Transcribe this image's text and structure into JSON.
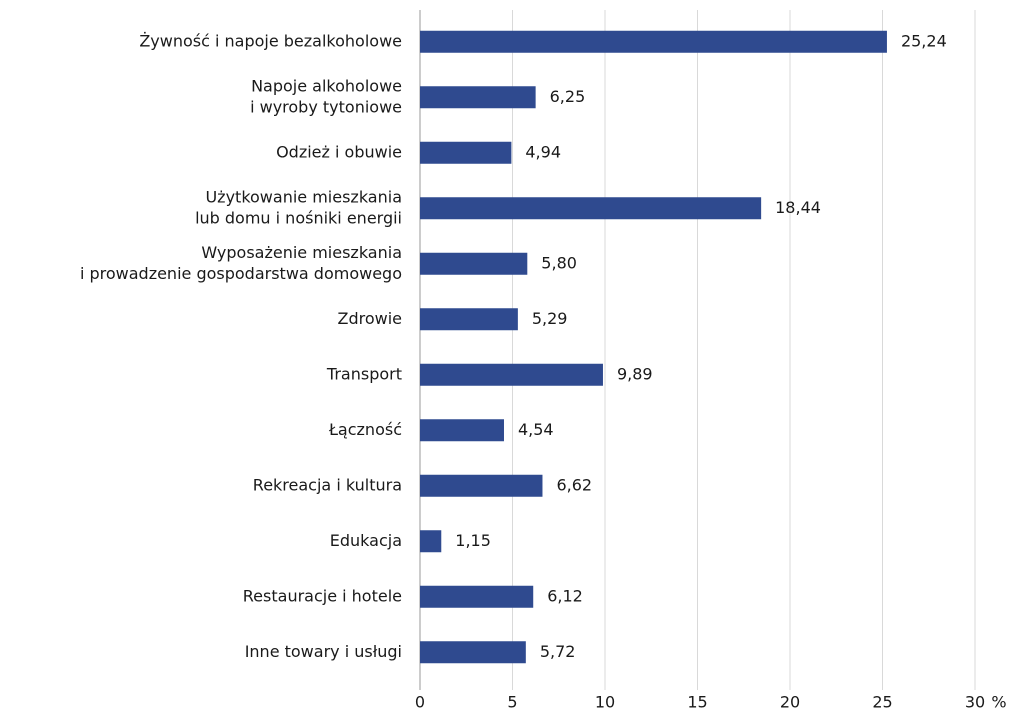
{
  "chart_data": {
    "type": "bar",
    "orientation": "horizontal",
    "categories": [
      "Żywność i napoje bezalkoholowe",
      [
        "Napoje alkoholowe",
        "i wyroby tytoniowe"
      ],
      "Odzież i obuwie",
      [
        "Użytkowanie mieszkania",
        "lub domu i nośniki energii"
      ],
      [
        "Wyposażenie mieszkania",
        "i prowadzenie gospodarstwa domowego"
      ],
      "Zdrowie",
      "Transport",
      "Łączność",
      "Rekreacja i kultura",
      "Edukacja",
      "Restauracje i hotele",
      "Inne towary i usługi"
    ],
    "values": [
      25.24,
      6.25,
      4.94,
      18.44,
      5.8,
      5.29,
      9.89,
      4.54,
      6.62,
      1.15,
      6.12,
      5.72
    ],
    "value_labels": [
      "25,24",
      "6,25",
      "4,94",
      "18,44",
      "5,80",
      "5,29",
      "9,89",
      "4,54",
      "6,62",
      "1,15",
      "6,12",
      "5,72"
    ],
    "color": "#2f4a8f",
    "xlim": [
      0,
      30
    ],
    "xticks": [
      0,
      5,
      10,
      15,
      20,
      25,
      30
    ],
    "x_unit": "%",
    "grid": true
  }
}
